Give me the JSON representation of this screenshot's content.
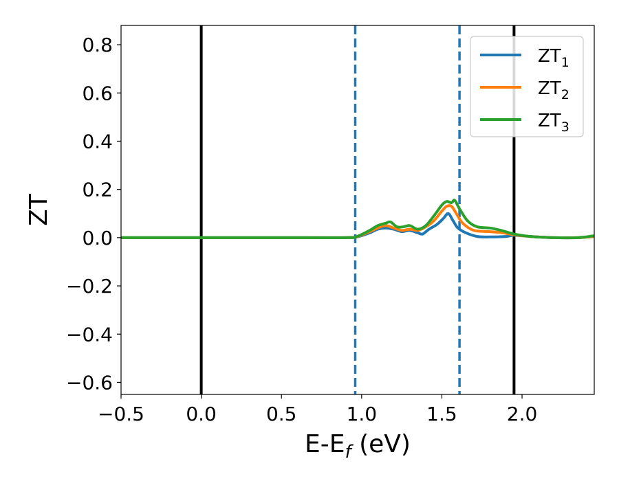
{
  "chart_data": {
    "type": "line",
    "title": "",
    "xlabel": {
      "main": "E-E",
      "sub": "f",
      "unit": " (eV)"
    },
    "ylabel": "ZT",
    "xlim": [
      -0.5,
      2.45
    ],
    "ylim": [
      -0.65,
      0.88
    ],
    "x_ticks": [
      -0.5,
      0.0,
      0.5,
      1.0,
      1.5,
      2.0
    ],
    "x_tick_labels": [
      "−0.5",
      "0.0",
      "0.5",
      "1.0",
      "1.5",
      "2.0"
    ],
    "y_ticks": [
      -0.6,
      -0.4,
      -0.2,
      0.0,
      0.2,
      0.4,
      0.6,
      0.8
    ],
    "y_tick_labels": [
      "−0.6",
      "−0.4",
      "−0.2",
      "0.0",
      "0.2",
      "0.4",
      "0.6",
      "0.8"
    ],
    "grid": false,
    "legend_position": "top-right",
    "vlines": [
      {
        "x": 0.0,
        "style": "solid",
        "color": "#000000"
      },
      {
        "x": 1.95,
        "style": "solid",
        "color": "#000000"
      },
      {
        "x": 0.96,
        "style": "dashed",
        "color": "#1f77b4"
      },
      {
        "x": 1.61,
        "style": "dashed",
        "color": "#1f77b4"
      }
    ],
    "series": [
      {
        "name": "ZT",
        "sub": "1",
        "color": "#1f77b4",
        "x": [
          -0.5,
          0.0,
          0.5,
          0.9,
          0.97,
          1.05,
          1.1,
          1.15,
          1.2,
          1.25,
          1.3,
          1.35,
          1.38,
          1.42,
          1.47,
          1.51,
          1.54,
          1.57,
          1.6,
          1.65,
          1.72,
          1.8,
          1.9,
          1.95,
          2.05,
          2.2,
          2.35,
          2.45
        ],
        "y": [
          0.0,
          0.0,
          0.0,
          0.0,
          0.003,
          0.02,
          0.035,
          0.04,
          0.035,
          0.025,
          0.03,
          0.02,
          0.015,
          0.035,
          0.055,
          0.08,
          0.1,
          0.07,
          0.04,
          0.02,
          0.005,
          0.003,
          0.005,
          0.01,
          0.005,
          0.0,
          0.0,
          0.005
        ]
      },
      {
        "name": "ZT",
        "sub": "2",
        "color": "#ff7f0e",
        "x": [
          -0.5,
          0.0,
          0.5,
          0.9,
          0.97,
          1.05,
          1.1,
          1.15,
          1.2,
          1.25,
          1.3,
          1.35,
          1.4,
          1.45,
          1.5,
          1.53,
          1.56,
          1.59,
          1.63,
          1.7,
          1.8,
          1.88,
          1.95,
          2.05,
          2.2,
          2.35,
          2.45
        ],
        "y": [
          0.0,
          0.0,
          0.0,
          0.0,
          0.004,
          0.025,
          0.04,
          0.05,
          0.04,
          0.03,
          0.035,
          0.03,
          0.045,
          0.07,
          0.11,
          0.13,
          0.13,
          0.1,
          0.06,
          0.03,
          0.025,
          0.02,
          0.012,
          0.005,
          0.0,
          0.0,
          0.005
        ]
      },
      {
        "name": "ZT",
        "sub": "3",
        "color": "#2ca02c",
        "x": [
          -0.5,
          0.0,
          0.5,
          0.9,
          0.97,
          1.05,
          1.1,
          1.15,
          1.18,
          1.22,
          1.26,
          1.3,
          1.35,
          1.4,
          1.45,
          1.5,
          1.53,
          1.56,
          1.58,
          1.61,
          1.66,
          1.72,
          1.8,
          1.87,
          1.95,
          2.05,
          2.2,
          2.35,
          2.45
        ],
        "y": [
          0.0,
          0.0,
          0.0,
          0.0,
          0.005,
          0.03,
          0.05,
          0.06,
          0.065,
          0.045,
          0.045,
          0.05,
          0.035,
          0.05,
          0.09,
          0.135,
          0.15,
          0.145,
          0.155,
          0.12,
          0.07,
          0.045,
          0.04,
          0.03,
          0.015,
          0.005,
          0.0,
          0.0,
          0.008
        ]
      }
    ]
  }
}
